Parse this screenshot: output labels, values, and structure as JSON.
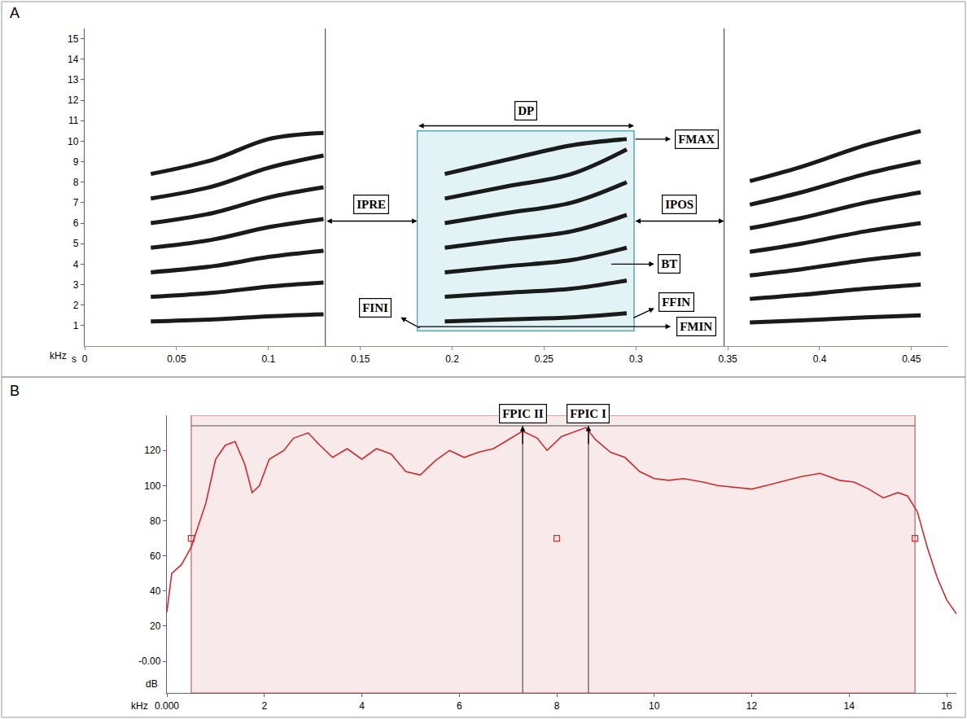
{
  "chart_data": [
    {
      "panel": "A",
      "type": "line",
      "x_label": "s",
      "y_label": "kHz",
      "color": "#1a1a1a",
      "grid": false,
      "xlim": [
        0,
        0.47
      ],
      "xticks": [
        0,
        0.05,
        0.1,
        0.15,
        0.2,
        0.25,
        0.3,
        0.35,
        0.4,
        0.45
      ],
      "ylim": [
        0,
        15.5
      ],
      "yticks": [
        1,
        2,
        3,
        4,
        5,
        6,
        7,
        8,
        9,
        10,
        11,
        12,
        13,
        14,
        15
      ],
      "series": [
        {
          "x": [
            0.036,
            0.07,
            0.1,
            0.13
          ],
          "values": [
            1.2,
            1.3,
            1.45,
            1.55
          ]
        },
        {
          "x": [
            0.036,
            0.07,
            0.1,
            0.13
          ],
          "values": [
            2.4,
            2.6,
            2.9,
            3.1
          ]
        },
        {
          "x": [
            0.036,
            0.07,
            0.1,
            0.13
          ],
          "values": [
            3.6,
            3.9,
            4.35,
            4.65
          ]
        },
        {
          "x": [
            0.036,
            0.07,
            0.1,
            0.13
          ],
          "values": [
            4.8,
            5.2,
            5.8,
            6.2
          ]
        },
        {
          "x": [
            0.036,
            0.07,
            0.1,
            0.13
          ],
          "values": [
            6.0,
            6.5,
            7.25,
            7.75
          ]
        },
        {
          "x": [
            0.036,
            0.07,
            0.1,
            0.13
          ],
          "values": [
            7.2,
            7.8,
            8.7,
            9.3
          ]
        },
        {
          "x": [
            0.036,
            0.07,
            0.1,
            0.13
          ],
          "values": [
            8.4,
            9.1,
            10.1,
            10.4
          ]
        },
        {
          "x": [
            0.196,
            0.23,
            0.265,
            0.295
          ],
          "values": [
            1.2,
            1.3,
            1.4,
            1.6
          ]
        },
        {
          "x": [
            0.196,
            0.23,
            0.265,
            0.295
          ],
          "values": [
            2.4,
            2.6,
            2.8,
            3.2
          ]
        },
        {
          "x": [
            0.196,
            0.23,
            0.265,
            0.295
          ],
          "values": [
            3.6,
            3.9,
            4.2,
            4.8
          ]
        },
        {
          "x": [
            0.196,
            0.23,
            0.265,
            0.295
          ],
          "values": [
            4.8,
            5.2,
            5.6,
            6.4
          ]
        },
        {
          "x": [
            0.196,
            0.23,
            0.265,
            0.295
          ],
          "values": [
            6.0,
            6.5,
            7.0,
            8.0
          ]
        },
        {
          "x": [
            0.196,
            0.23,
            0.265,
            0.295
          ],
          "values": [
            7.2,
            7.8,
            8.4,
            9.6
          ]
        },
        {
          "x": [
            0.196,
            0.23,
            0.265,
            0.295
          ],
          "values": [
            8.4,
            9.1,
            9.8,
            10.1
          ]
        },
        {
          "x": [
            0.362,
            0.39,
            0.425,
            0.455
          ],
          "values": [
            1.15,
            1.25,
            1.4,
            1.5
          ]
        },
        {
          "x": [
            0.362,
            0.39,
            0.425,
            0.455
          ],
          "values": [
            2.3,
            2.5,
            2.8,
            3.0
          ]
        },
        {
          "x": [
            0.362,
            0.39,
            0.425,
            0.455
          ],
          "values": [
            3.45,
            3.75,
            4.2,
            4.5
          ]
        },
        {
          "x": [
            0.362,
            0.39,
            0.425,
            0.455
          ],
          "values": [
            4.6,
            5.0,
            5.6,
            6.0
          ]
        },
        {
          "x": [
            0.362,
            0.39,
            0.425,
            0.455
          ],
          "values": [
            5.75,
            6.25,
            7.0,
            7.5
          ]
        },
        {
          "x": [
            0.362,
            0.39,
            0.425,
            0.455
          ],
          "values": [
            6.9,
            7.5,
            8.4,
            9.0
          ]
        },
        {
          "x": [
            0.362,
            0.39,
            0.425,
            0.455
          ],
          "values": [
            8.05,
            8.75,
            9.8,
            10.5
          ]
        }
      ],
      "box": {
        "x0": 0.181,
        "x1": 0.299,
        "y0": 0.75,
        "y1": 10.5
      },
      "vlines": [
        0.131,
        0.348
      ],
      "annotations": [
        {
          "text": "DP",
          "x": 0.24,
          "y": 11.5,
          "arrow": {
            "from": [
              0.181,
              10.75
            ],
            "to": [
              0.299,
              10.75
            ],
            "both": true
          }
        },
        {
          "text": "FMAX",
          "x": 0.333,
          "y": 10.1,
          "arrow": {
            "from": [
              0.299,
              10.1
            ],
            "to": [
              0.319,
              10.1
            ],
            "both": false
          }
        },
        {
          "text": "IPRE",
          "x": 0.156,
          "y": 6.9,
          "arrow": {
            "from": [
              0.131,
              6.1
            ],
            "to": [
              0.181,
              6.1
            ],
            "both": true
          }
        },
        {
          "text": "IPOS",
          "x": 0.3235,
          "y": 6.9,
          "arrow": {
            "from": [
              0.299,
              6.1
            ],
            "to": [
              0.348,
              6.1
            ],
            "both": true
          }
        },
        {
          "text": "BT",
          "x": 0.318,
          "y": 4.0,
          "arrow": {
            "from": [
              0.286,
              4.0
            ],
            "to": [
              0.31,
              4.0
            ],
            "both": false
          }
        },
        {
          "text": "FFIN",
          "x": 0.322,
          "y": 2.15,
          "arrow": {
            "from": [
              0.298,
              1.35
            ],
            "to": [
              0.31,
              1.85
            ],
            "both": false
          }
        },
        {
          "text": "FINI",
          "x": 0.158,
          "y": 1.85,
          "arrow": {
            "from": [
              0.183,
              0.85
            ],
            "to": [
              0.172,
              1.4
            ],
            "both": false
          }
        },
        {
          "text": "FMIN",
          "x": 0.333,
          "y": 0.95,
          "arrow": {
            "from": [
              0.181,
              0.95
            ],
            "to": [
              0.319,
              0.95
            ],
            "both": false
          }
        }
      ]
    },
    {
      "panel": "B",
      "type": "line",
      "x_label": "kHz",
      "y_label": "dB",
      "color": "#d02a2a",
      "grid": false,
      "xlim": [
        0,
        16.2
      ],
      "xticks": [
        {
          "value": 0,
          "label": "0.000"
        },
        2,
        4,
        6,
        8,
        10,
        12,
        14,
        16
      ],
      "ylim": [
        -18,
        140
      ],
      "yticks": [
        {
          "value": 0,
          "label": "-0.00"
        },
        20,
        40,
        60,
        80,
        100,
        120
      ],
      "x": [
        0,
        0.1,
        0.3,
        0.5,
        0.8,
        1.0,
        1.2,
        1.4,
        1.6,
        1.75,
        1.9,
        2.1,
        2.4,
        2.6,
        2.9,
        3.1,
        3.4,
        3.7,
        4.0,
        4.3,
        4.6,
        4.9,
        5.2,
        5.5,
        5.8,
        6.1,
        6.4,
        6.7,
        7.0,
        7.3,
        7.6,
        7.8,
        8.1,
        8.4,
        8.6,
        8.8,
        9.1,
        9.4,
        9.7,
        10.0,
        10.3,
        10.6,
        11.0,
        11.3,
        11.6,
        12.0,
        12.3,
        12.6,
        13.0,
        13.4,
        13.8,
        14.1,
        14.4,
        14.7,
        15.0,
        15.2,
        15.4,
        15.6,
        15.8,
        16.0,
        16.2
      ],
      "values": [
        28,
        50,
        55,
        65,
        90,
        115,
        123,
        125,
        112,
        96,
        100,
        115,
        120,
        127,
        130,
        124,
        116,
        121,
        115,
        121,
        118,
        108,
        106,
        114,
        120,
        116,
        119,
        121,
        126,
        131,
        127,
        120,
        128,
        131,
        133,
        126,
        119,
        116,
        108,
        104,
        103,
        104,
        102,
        100,
        99,
        98,
        100,
        102,
        105,
        107,
        103,
        102,
        98,
        93,
        96,
        94,
        85,
        65,
        48,
        35,
        27
      ],
      "region": {
        "x0": 0.5,
        "x1": 15.35,
        "y1": 134
      },
      "handles": [
        {
          "x": 0.5,
          "y": 70
        },
        {
          "x": 8,
          "y": 70
        },
        {
          "x": 15.35,
          "y": 70
        }
      ],
      "annotations": [
        {
          "text": "FPIC II",
          "x": 7.3
        },
        {
          "text": "FPIC I",
          "x": 8.65
        }
      ]
    }
  ]
}
